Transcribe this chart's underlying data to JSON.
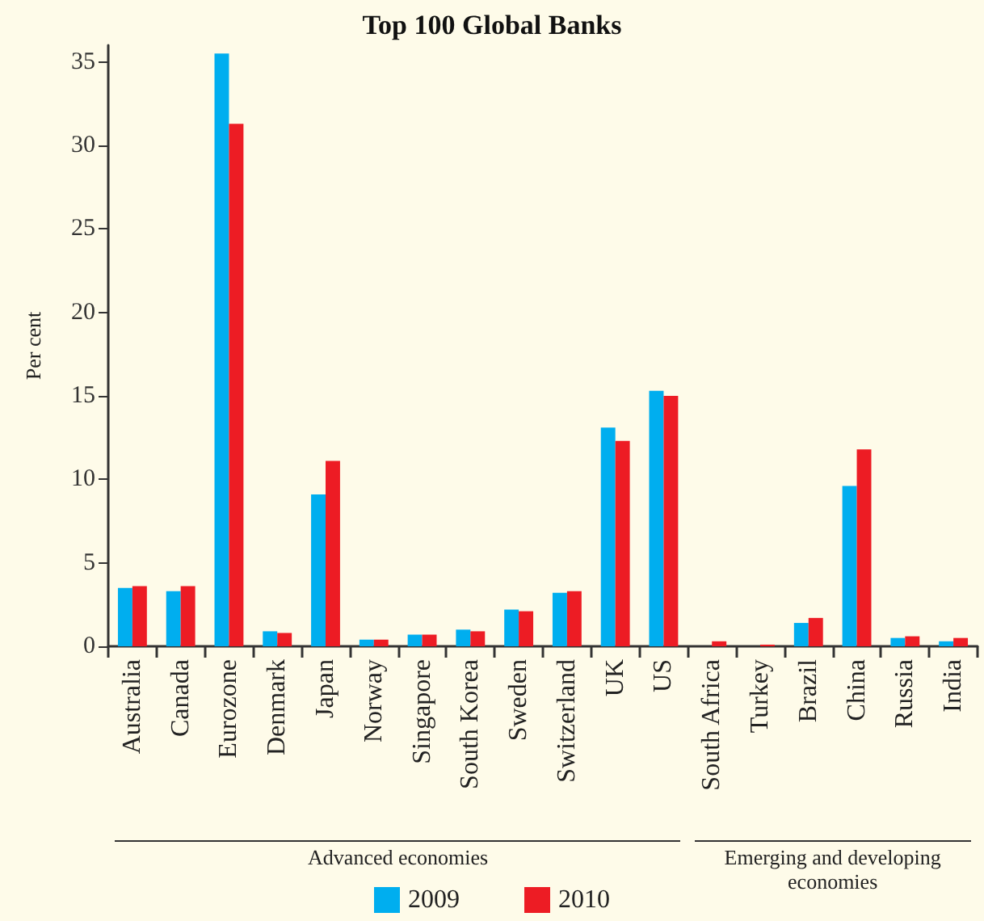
{
  "chart_data": {
    "type": "bar",
    "title": "Top 100 Global Banks",
    "ylabel": "Per cent",
    "categories": [
      "Australia",
      "Canada",
      "Eurozone",
      "Denmark",
      "Japan",
      "Norway",
      "Singapore",
      "South Korea",
      "Sweden",
      "Switzerland",
      "UK",
      "US",
      "South Africa",
      "Turkey",
      "Brazil",
      "China",
      "Russia",
      "India"
    ],
    "series": [
      {
        "name": "2009",
        "color": "#00aeef",
        "values": [
          3.5,
          3.3,
          35.5,
          0.9,
          9.1,
          0.4,
          0.7,
          1.0,
          2.2,
          3.2,
          13.1,
          15.3,
          0,
          0,
          1.4,
          9.6,
          0.5,
          0.3
        ]
      },
      {
        "name": "2010",
        "color": "#ed1c24",
        "values": [
          3.6,
          3.6,
          31.3,
          0.8,
          11.1,
          0.4,
          0.7,
          0.9,
          2.1,
          3.3,
          12.3,
          15.0,
          0.3,
          0.1,
          1.7,
          11.8,
          0.6,
          0.5
        ]
      }
    ],
    "ylim": [
      0,
      36
    ],
    "yticks": [
      0,
      5,
      10,
      15,
      20,
      25,
      30,
      35
    ],
    "grid": false,
    "legend": "bottom",
    "annotations": [
      "Advanced economies",
      "Emerging and developing economies"
    ]
  }
}
